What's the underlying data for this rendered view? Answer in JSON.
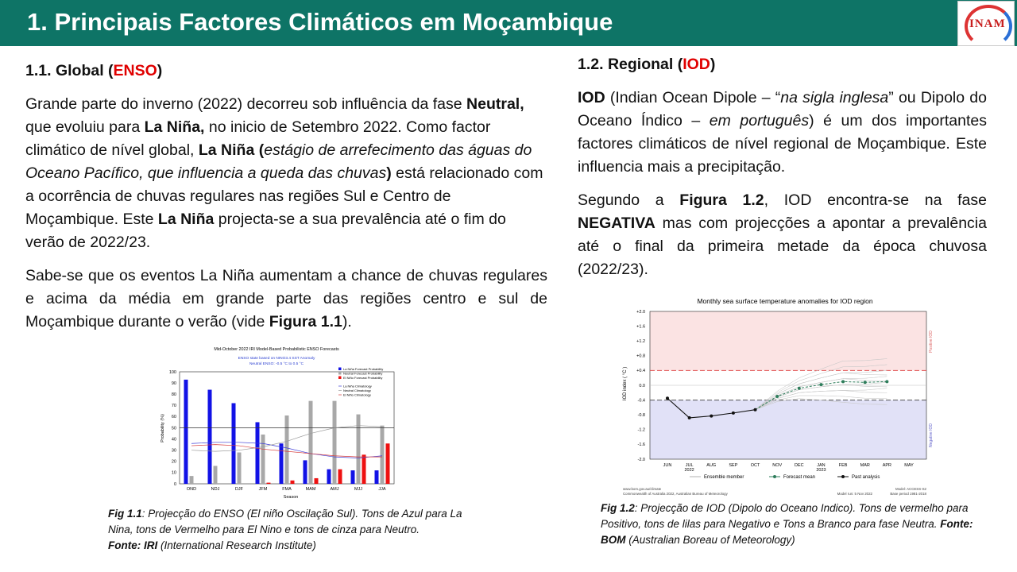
{
  "header": {
    "title": "1. Principais Factores Climáticos em Moçambique",
    "logo_text": "INAM"
  },
  "left": {
    "heading_prefix": "1.1.  Global (",
    "heading_highlight": "ENSO",
    "heading_suffix": ")",
    "p1": {
      "a": "Grande parte do inverno (2022) decorreu sob influência da fase ",
      "b": "Neutral,",
      "c": " que evoluiu para ",
      "d": "La Niña,",
      "e": " no inicio de Setembro 2022. Como factor climático de nível global, ",
      "f": "La Niña (",
      "g": "estágio de arrefecimento das águas do Oceano Pacífico, que influencia a queda das chuvas",
      "h": ")",
      "i": " está relacionado com a ocorrência de chuvas regulares nas regiões Sul e Centro de Moçambique. Este ",
      "j": "La Niña",
      "k": " projecta-se a sua prevalência até o fim do verão de 2022/23."
    },
    "p2": {
      "a": "Sabe-se que os eventos La Niña aumentam a chance de chuvas regulares e acima da média em grande parte das regiões centro e sul de Moçambique durante o verão (vide ",
      "b": "Figura 1.1",
      "c": ")."
    },
    "caption": {
      "a": "Fig 1.1",
      "b": ": Projecção do ENSO (El niño Oscilação Sul). Tons de Azul para La Nina, tons de Vermelho para El Nino e tons de cinza para Neutro.",
      "c": "Fonte: IRI",
      "d": " (International Research Institute)"
    }
  },
  "right": {
    "heading_prefix": "1.2. Regional (",
    "heading_highlight": "IOD",
    "heading_suffix": ")",
    "p1": {
      "a": "IOD",
      "b": " (Indian Ocean Dipole – “",
      "c": "na sigla inglesa",
      "d": "” ou Dipolo do Oceano Índico – ",
      "e": "em português",
      "f": ") é um dos importantes factores climáticos de nível regional de Moçambique. Este influencia mais a precipitação."
    },
    "p2": {
      "a": "Segundo a ",
      "b": "Figura 1.2",
      "c": ", IOD encontra-se na fase ",
      "d": "NEGATIVA",
      "e": " mas com projecções a apontar a prevalência até o final da primeira metade da  época chuvosa (2022/23)."
    },
    "caption": {
      "a": "Fig 1.2",
      "b": ": Projecção de IOD (Dipolo do Oceano Indico). Tons de vermelho para Positivo, tons de lilas para Negativo e Tons a Branco para fase Neutra. ",
      "c": "Fonte: BOM",
      "d": " (Australian Boreau of Meteorology)"
    }
  },
  "chart_data": [
    {
      "type": "bar",
      "title": "Mid-October 2022 IRI Model-Based Probabilistic ENSO Forecasts",
      "subtitle": "ENSO state based on NINO3.4 SST Anomaly",
      "subtitle2": "Neutral ENSO: -0.5 °C to 0.5 °C",
      "xlabel": "Season",
      "ylabel": "Probability (%)",
      "ylim": [
        0,
        100
      ],
      "yticks": [
        0,
        10,
        20,
        30,
        40,
        50,
        60,
        70,
        80,
        90,
        100
      ],
      "categories": [
        "OND",
        "NDJ",
        "DJF",
        "JFM",
        "FMA",
        "MAM",
        "AMJ",
        "MJJ",
        "JJA"
      ],
      "series": [
        {
          "name": "La Niña Forecast Probability",
          "color": "#1212e6",
          "values": [
            93,
            84,
            72,
            55,
            36,
            21,
            13,
            12,
            12
          ]
        },
        {
          "name": "Neutral Forecast Probability",
          "color": "#a8a8a8",
          "values": [
            7,
            16,
            28,
            44,
            61,
            74,
            74,
            62,
            52
          ]
        },
        {
          "name": "El Niño Forecast Probability",
          "color": "#ee1111",
          "values": [
            0,
            0,
            0,
            1,
            3,
            5,
            13,
            26,
            36
          ]
        }
      ],
      "climatology": [
        {
          "name": "La Niña Climatology",
          "color": "#3b3bd6",
          "values": [
            36,
            37,
            37,
            36,
            32,
            27,
            24,
            23,
            25
          ]
        },
        {
          "name": "Neutral Climatology",
          "color": "#9a9a9a",
          "values": [
            30,
            29,
            30,
            33,
            38,
            45,
            50,
            52,
            51
          ]
        },
        {
          "name": "El Niño Climatology",
          "color": "#d63b3b",
          "values": [
            34,
            35,
            34,
            31,
            29,
            27,
            25,
            24,
            24
          ]
        }
      ],
      "reference_line": 50
    },
    {
      "type": "line",
      "title": "Monthly sea surface temperature anomalies for IOD region",
      "ylabel": "IOD index ( °C )",
      "ylim": [
        -2.0,
        2.0
      ],
      "yticks": [
        "+2.0",
        "+1.6",
        "+1.2",
        "+0.8",
        "+0.4",
        "0.0",
        "-0.4",
        "-0.8",
        "-1.2",
        "-1.6",
        "-2.0"
      ],
      "x": [
        "JUN",
        "JUL",
        "AUG",
        "SEP",
        "OCT",
        "NOV",
        "DEC",
        "JAN",
        "FEB",
        "MAR",
        "APR",
        "MAY"
      ],
      "year_labels": {
        "JUL": "2022",
        "JAN": "2023"
      },
      "thresholds": [
        0.4,
        -0.4
      ],
      "zone_labels": {
        "positive": "Positive IOD",
        "negative": "Negative IOD"
      },
      "series": [
        {
          "name": "Past analysis",
          "color": "#111111",
          "x": [
            "JUN",
            "JUL",
            "AUG",
            "SEP",
            "OCT"
          ],
          "values": [
            -0.35,
            -0.88,
            -0.83,
            -0.75,
            -0.66
          ]
        },
        {
          "name": "Forecast mean",
          "color": "#2e7d5b",
          "x": [
            "OCT",
            "NOV",
            "DEC",
            "JAN",
            "FEB",
            "MAR",
            "APR"
          ],
          "values": [
            -0.66,
            -0.3,
            -0.08,
            0.02,
            0.1,
            0.08,
            0.1
          ]
        },
        {
          "name": "Ensemble member",
          "color": "#b0b0b0"
        }
      ],
      "footer_left": [
        "www.bom.gov.au/climate",
        "Commonwealth of Australia 2022, Australian Bureau of Meteorology"
      ],
      "footer_right": [
        "Model: ACCESS-S2",
        "Model run: 5 Nov 2022",
        "Base period 1981-2018"
      ]
    }
  ]
}
